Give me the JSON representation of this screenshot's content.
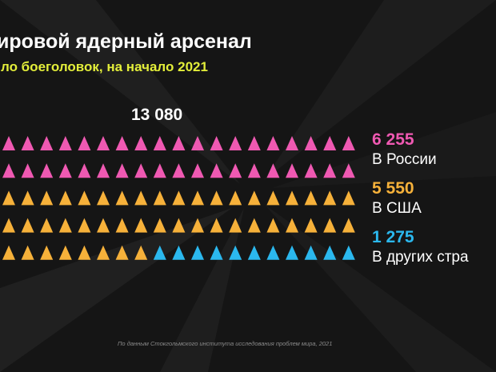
{
  "header": {
    "title": "ировой ядерный арсенал",
    "subtitle": "ло боеголовок, на начало 2021"
  },
  "footer": {
    "source": "По данным Стокгольмского института исследования проблем мира, 2021"
  },
  "chart_data": {
    "type": "pictogram",
    "total": "13 080",
    "rows_visible": 5,
    "columns_visible": 19,
    "categories": [
      "В России",
      "В США",
      "В других стра"
    ],
    "series": [
      {
        "value_label": "6 255",
        "label": "В России",
        "value": 6255,
        "color": "#ef59b2",
        "icons_visible": 38
      },
      {
        "value_label": "5 550",
        "label": "В США",
        "value": 5550,
        "color": "#f6b13a",
        "icons_visible": 46
      },
      {
        "value_label": "1 275",
        "label": "В других стра",
        "value": 1275,
        "color": "#2bb8ee",
        "icons_visible": 11
      }
    ],
    "icon": "triangle-warhead-icon"
  }
}
